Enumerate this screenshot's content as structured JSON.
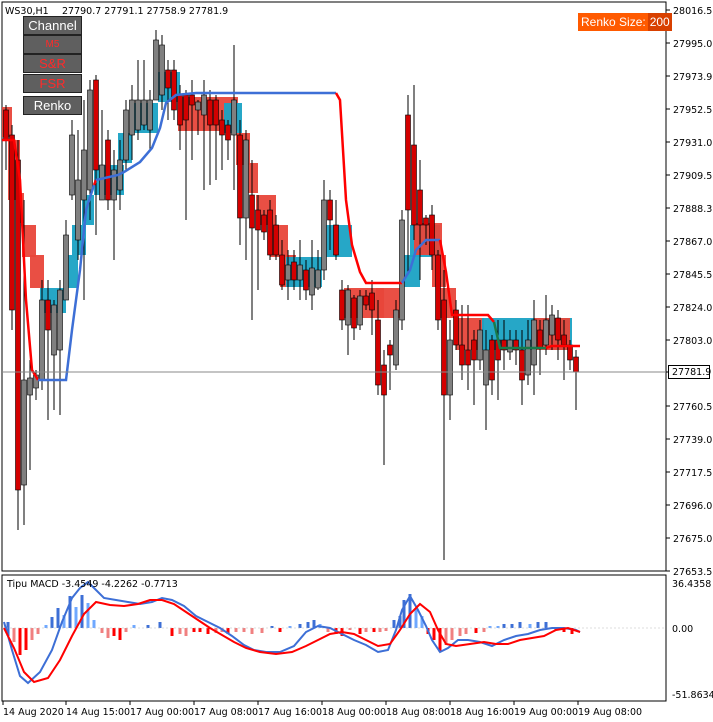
{
  "header": {
    "symbol_timeframe": "WS30,H1",
    "ohlc": "27790.7 27791.1 27758.9 27781.9"
  },
  "buttons": [
    {
      "label": "Channel",
      "style": "grey"
    },
    {
      "label": "M5 SupDemB",
      "style": "red"
    },
    {
      "label": "S&R",
      "style": "red"
    },
    {
      "label": "FSR",
      "style": "red"
    },
    {
      "label": "Renko",
      "style": "grey"
    }
  ],
  "renko": {
    "label": "Renko Size:",
    "value": "200"
  },
  "price_axis": {
    "ticks": [
      "28016.5",
      "27995.0",
      "27973.9",
      "27952.5",
      "27931.0",
      "27909.5",
      "27888.3",
      "27867.0",
      "27845.5",
      "27824.0",
      "27803.0",
      "27781.9",
      "27760.5",
      "27739.0",
      "27717.5",
      "27696.0",
      "27675.0",
      "27653.5"
    ],
    "current_price": "27781.9"
  },
  "time_axis": {
    "ticks": [
      "14 Aug 2020",
      "14 Aug 15:00",
      "17 Aug 00:00",
      "17 Aug 08:00",
      "17 Aug 16:00",
      "18 Aug 00:00",
      "18 Aug 08:00",
      "18 Aug 16:00",
      "19 Aug 00:00",
      "19 Aug 08:00"
    ]
  },
  "indicator": {
    "name": "Tipu MACD",
    "values": "-3.4549 -4.2262 -0.7713",
    "scale_top": "36.4358",
    "scale_zero": "0.00",
    "scale_bottom": "-51.8634"
  },
  "colors": {
    "bull_candle": "#808080",
    "bear_candle": "#d40000",
    "supply_zone": "#e8463a",
    "demand_zone": "#1aa2c4",
    "trend_red": "#ff0000",
    "trend_blue": "#3d6fd6",
    "macd_blue": "#3d6fd6",
    "macd_red": "#ff0000"
  },
  "chart_data": {
    "type": "candlestick",
    "ohlc_legend": {
      "open": 27790.7,
      "high": 27791.1,
      "low": 27758.9,
      "close": 27781.9
    },
    "ylim": [
      27653.5,
      28016.5
    ],
    "indicator_ylim": [
      -51.8634,
      36.4358
    ]
  }
}
